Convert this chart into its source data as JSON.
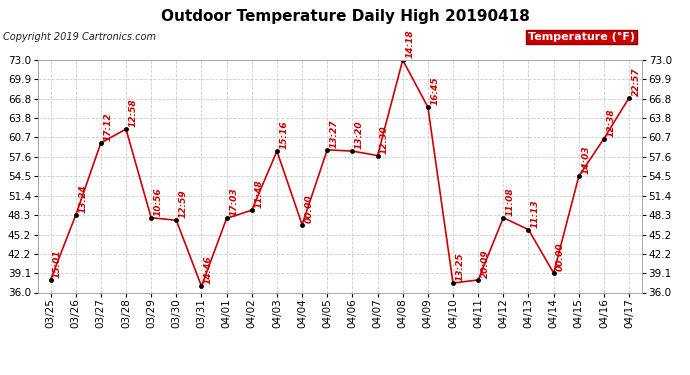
{
  "title": "Outdoor Temperature Daily High 20190418",
  "copyright": "Copyright 2019 Cartronics.com",
  "legend_label": "Temperature (°F)",
  "dates": [
    "03/25",
    "03/26",
    "03/27",
    "03/28",
    "03/29",
    "03/30",
    "03/31",
    "04/01",
    "04/02",
    "04/03",
    "04/04",
    "04/05",
    "04/06",
    "04/07",
    "04/08",
    "04/09",
    "04/10",
    "04/11",
    "04/12",
    "04/13",
    "04/14",
    "04/15",
    "04/16",
    "04/17"
  ],
  "temps": [
    38.0,
    48.3,
    59.8,
    62.0,
    47.9,
    47.5,
    37.0,
    47.8,
    49.1,
    58.5,
    46.8,
    58.7,
    58.5,
    57.8,
    73.0,
    65.5,
    37.5,
    38.0,
    47.9,
    46.0,
    39.1,
    54.5,
    60.5,
    67.0
  ],
  "time_labels": [
    "15:01",
    "13:24",
    "17:12",
    "12:58",
    "10:56",
    "12:59",
    "14:46",
    "17:03",
    "11:48",
    "15:16",
    "00:00",
    "13:27",
    "13:20",
    "12:30",
    "14:18",
    "16:45",
    "13:25",
    "20:09",
    "11:08",
    "11:13",
    "00:00",
    "14:03",
    "12:38",
    "22:57"
  ],
  "ylim": [
    36.0,
    73.0
  ],
  "yticks": [
    36.0,
    39.1,
    42.2,
    45.2,
    48.3,
    51.4,
    54.5,
    57.6,
    60.7,
    63.8,
    66.8,
    69.9,
    73.0
  ],
  "line_color": "#cc0000",
  "marker_color": "#000000",
  "label_color": "#cc0000",
  "bg_color": "#ffffff",
  "grid_color": "#cccccc",
  "title_fontsize": 11,
  "copyright_fontsize": 7,
  "tick_fontsize": 7.5,
  "label_fontsize": 6.5,
  "legend_fontsize": 8,
  "legend_bg": "#cc0000",
  "legend_fg": "#ffffff"
}
